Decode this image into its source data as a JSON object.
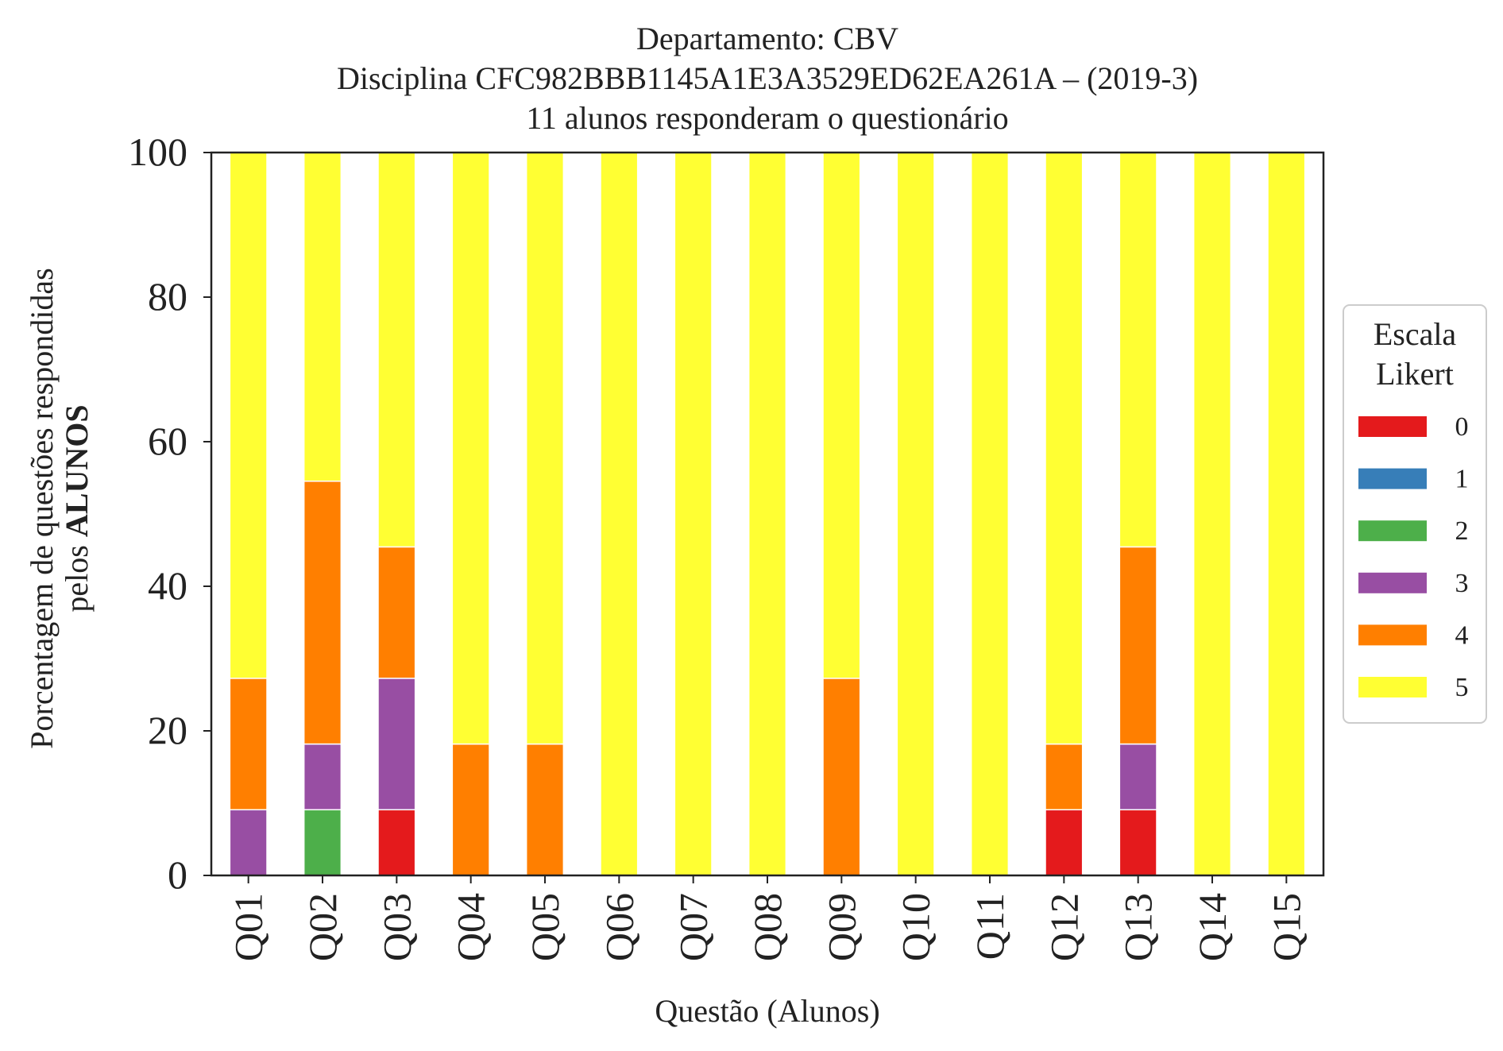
{
  "chart_data": {
    "type": "bar",
    "stacked": true,
    "title_lines": [
      "Departamento: CBV",
      "Disciplina CFC982BBB1145A1E3A3529ED62EA261A – (2019-3)",
      "11 alunos responderam o questionário"
    ],
    "xlabel": "Questão (Alunos)",
    "ylabel_line1": "Porcentagem de questões respondidas",
    "ylabel_line2_prefix": "pelos ",
    "ylabel_line2_bold": "ALUNOS",
    "ylim": [
      0,
      100
    ],
    "yticks": [
      0,
      20,
      40,
      60,
      80,
      100
    ],
    "categories": [
      "Q01",
      "Q02",
      "Q03",
      "Q04",
      "Q05",
      "Q06",
      "Q07",
      "Q08",
      "Q09",
      "Q10",
      "Q11",
      "Q12",
      "Q13",
      "Q14",
      "Q15"
    ],
    "legend_title_lines": [
      "Escala",
      "Likert"
    ],
    "legend_position": "center-right",
    "grid": false,
    "series": [
      {
        "name": "0",
        "color": "#e41a1c",
        "values": [
          0,
          0,
          9.09,
          0,
          0,
          0,
          0,
          0,
          0,
          0,
          0,
          9.09,
          9.09,
          0,
          0
        ]
      },
      {
        "name": "1",
        "color": "#377eb8",
        "values": [
          0,
          0,
          0,
          0,
          0,
          0,
          0,
          0,
          0,
          0,
          0,
          0,
          0,
          0,
          0
        ]
      },
      {
        "name": "2",
        "color": "#4daf4a",
        "values": [
          0,
          9.09,
          0,
          0,
          0,
          0,
          0,
          0,
          0,
          0,
          0,
          0,
          0,
          0,
          0
        ]
      },
      {
        "name": "3",
        "color": "#984ea3",
        "values": [
          9.09,
          9.09,
          18.18,
          0,
          0,
          0,
          0,
          0,
          0,
          0,
          0,
          0,
          9.09,
          0,
          0
        ]
      },
      {
        "name": "4",
        "color": "#ff7f00",
        "values": [
          18.18,
          36.36,
          18.18,
          18.18,
          18.18,
          0,
          0,
          0,
          27.27,
          0,
          0,
          9.09,
          27.27,
          0,
          0
        ]
      },
      {
        "name": "5",
        "color": "#ffff33",
        "values": [
          72.73,
          45.45,
          54.55,
          81.82,
          81.82,
          100,
          100,
          100,
          72.73,
          100,
          100,
          81.82,
          54.55,
          100,
          100
        ]
      }
    ]
  }
}
